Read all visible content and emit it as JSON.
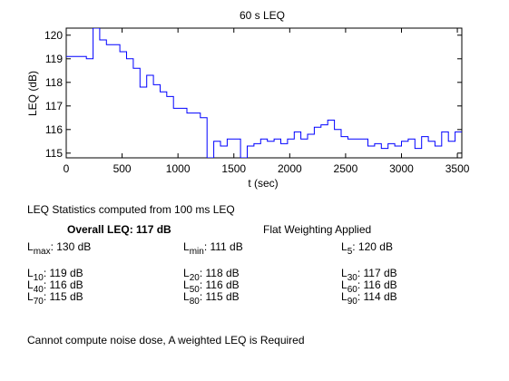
{
  "chart_data": {
    "type": "line",
    "step": true,
    "title": "60 s LEQ",
    "xlabel": "t (sec)",
    "ylabel": "LEQ (dB)",
    "xlim": [
      0,
      3540
    ],
    "ylim": [
      114.8,
      120.3
    ],
    "xticks": [
      0,
      500,
      1000,
      1500,
      2000,
      2500,
      3000,
      3500
    ],
    "yticks": [
      115,
      116,
      117,
      118,
      119,
      120
    ],
    "grid": false,
    "line_color": "#0000ff",
    "series": [
      {
        "x": [
          0,
          60,
          120,
          180,
          240,
          300,
          360,
          420,
          480,
          540,
          600,
          660,
          720,
          780,
          840,
          900,
          960,
          1020,
          1080,
          1140,
          1200,
          1260,
          1320,
          1380,
          1440,
          1500,
          1560,
          1620,
          1680,
          1740,
          1800,
          1860,
          1920,
          1980,
          2040,
          2100,
          2160,
          2220,
          2280,
          2340,
          2400,
          2460,
          2520,
          2580,
          2640,
          2700,
          2760,
          2820,
          2880,
          2940,
          3000,
          3060,
          3120,
          3180,
          3240,
          3300,
          3360,
          3420,
          3480
        ],
        "y": [
          119.1,
          119.1,
          119.1,
          119.0,
          120.3,
          119.8,
          119.6,
          119.6,
          119.3,
          119.0,
          118.6,
          117.8,
          118.3,
          117.9,
          117.6,
          117.4,
          116.9,
          116.9,
          116.7,
          116.7,
          116.5,
          114.8,
          115.5,
          115.3,
          115.6,
          115.6,
          114.8,
          115.3,
          115.4,
          115.6,
          115.5,
          115.6,
          115.4,
          115.6,
          115.9,
          115.6,
          115.8,
          116.1,
          116.2,
          116.4,
          116.0,
          115.7,
          115.6,
          115.6,
          115.6,
          115.3,
          115.4,
          115.2,
          115.4,
          115.3,
          115.5,
          115.6,
          115.2,
          115.7,
          115.5,
          115.3,
          115.9,
          115.5,
          115.9
        ]
      }
    ]
  },
  "stats": {
    "heading": "LEQ Statistics computed from 100 ms LEQ",
    "overall": "Overall LEQ: 117 dB",
    "weighting": "Flat Weighting Applied",
    "rows": [
      [
        {
          "name": "max",
          "value": ": 130 dB"
        },
        {
          "name": "min",
          "value": ": 111 dB"
        },
        {
          "name": "5",
          "value": ": 120 dB"
        }
      ],
      [
        {
          "name": "10",
          "value": ": 119 dB"
        },
        {
          "name": "20",
          "value": ": 118 dB"
        },
        {
          "name": "30",
          "value": ": 117 dB"
        }
      ],
      [
        {
          "name": "40",
          "value": ": 116 dB"
        },
        {
          "name": "50",
          "value": ": 116 dB"
        },
        {
          "name": "60",
          "value": ": 116 dB"
        }
      ],
      [
        {
          "name": "70",
          "value": ": 115 dB"
        },
        {
          "name": "80",
          "value": ": 115 dB"
        },
        {
          "name": "90",
          "value": ": 114 dB"
        }
      ]
    ],
    "note": "Cannot compute noise dose, A weighted LEQ is Required"
  }
}
